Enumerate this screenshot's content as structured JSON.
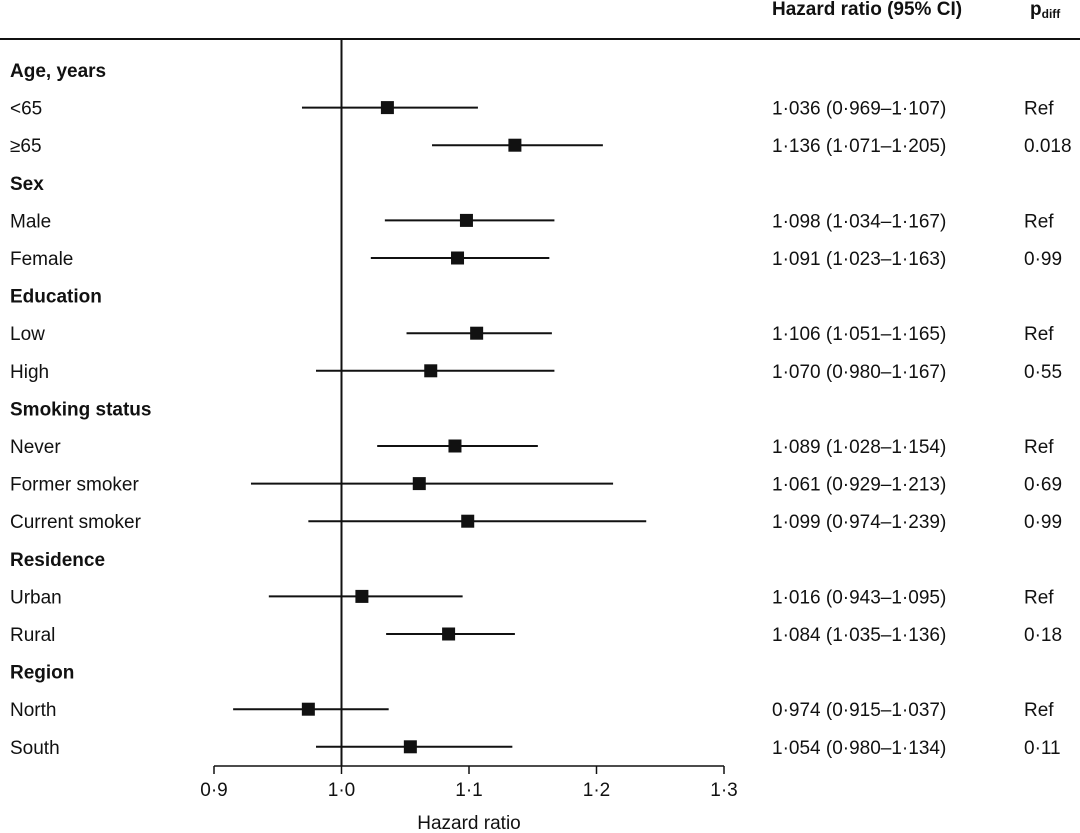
{
  "chart_data": {
    "type": "forest",
    "headers": {
      "hr": "Hazard ratio (95% CI)",
      "p_main": "p",
      "p_sub": "diff"
    },
    "xlabel": "Hazard ratio",
    "xlim": [
      0.9,
      1.3
    ],
    "xticks": [
      0.9,
      1.0,
      1.1,
      1.2,
      1.3
    ],
    "xtick_labels": [
      "0·9",
      "1·0",
      "1·1",
      "1·2",
      "1·3"
    ],
    "reference_line": 1.0,
    "rows": [
      {
        "kind": "group",
        "label": "Age, years"
      },
      {
        "kind": "item",
        "label": "<65",
        "hr": 1.036,
        "lo": 0.969,
        "hi": 1.107,
        "ci_text": "1·036 (0·969–1·107)",
        "p": "Ref"
      },
      {
        "kind": "item",
        "label": "≥65",
        "hr": 1.136,
        "lo": 1.071,
        "hi": 1.205,
        "ci_text": "1·136 (1·071–1·205)",
        "p": "0.018"
      },
      {
        "kind": "group",
        "label": "Sex"
      },
      {
        "kind": "item",
        "label": "Male",
        "hr": 1.098,
        "lo": 1.034,
        "hi": 1.167,
        "ci_text": "1·098 (1·034–1·167)",
        "p": "Ref"
      },
      {
        "kind": "item",
        "label": "Female",
        "hr": 1.091,
        "lo": 1.023,
        "hi": 1.163,
        "ci_text": "1·091 (1·023–1·163)",
        "p": "0·99"
      },
      {
        "kind": "group",
        "label": "Education"
      },
      {
        "kind": "item",
        "label": "Low",
        "hr": 1.106,
        "lo": 1.051,
        "hi": 1.165,
        "ci_text": "1·106 (1·051–1·165)",
        "p": "Ref"
      },
      {
        "kind": "item",
        "label": "High",
        "hr": 1.07,
        "lo": 0.98,
        "hi": 1.167,
        "ci_text": "1·070 (0·980–1·167)",
        "p": "0·55"
      },
      {
        "kind": "group",
        "label": "Smoking status"
      },
      {
        "kind": "item",
        "label": "Never",
        "hr": 1.089,
        "lo": 1.028,
        "hi": 1.154,
        "ci_text": "1·089 (1·028–1·154)",
        "p": "Ref"
      },
      {
        "kind": "item",
        "label": "Former smoker",
        "hr": 1.061,
        "lo": 0.929,
        "hi": 1.213,
        "ci_text": "1·061 (0·929–1·213)",
        "p": "0·69"
      },
      {
        "kind": "item",
        "label": "Current smoker",
        "hr": 1.099,
        "lo": 0.974,
        "hi": 1.239,
        "ci_text": "1·099 (0·974–1·239)",
        "p": "0·99"
      },
      {
        "kind": "group",
        "label": "Residence"
      },
      {
        "kind": "item",
        "label": "Urban",
        "hr": 1.016,
        "lo": 0.943,
        "hi": 1.095,
        "ci_text": "1·016 (0·943–1·095)",
        "p": "Ref"
      },
      {
        "kind": "item",
        "label": "Rural",
        "hr": 1.084,
        "lo": 1.035,
        "hi": 1.136,
        "ci_text": "1·084 (1·035–1·136)",
        "p": "0·18"
      },
      {
        "kind": "group",
        "label": "Region"
      },
      {
        "kind": "item",
        "label": "North",
        "hr": 0.974,
        "lo": 0.915,
        "hi": 1.037,
        "ci_text": "0·974 (0·915–1·037)",
        "p": "Ref"
      },
      {
        "kind": "item",
        "label": "South",
        "hr": 1.054,
        "lo": 0.98,
        "hi": 1.134,
        "ci_text": "1·054 (0·980–1·134)",
        "p": "0·11"
      }
    ]
  }
}
